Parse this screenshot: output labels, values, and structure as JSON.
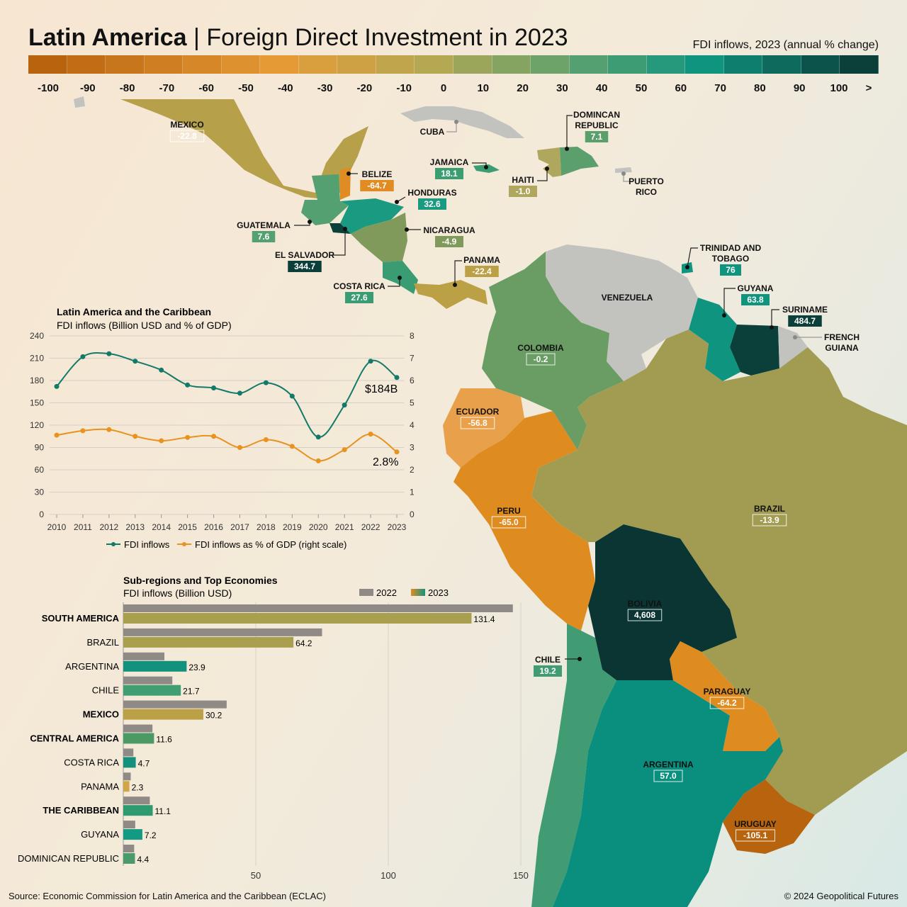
{
  "title": {
    "bold": "Latin America",
    "separator": "|",
    "rest": "Foreign Direct Investment in 2023"
  },
  "legend": {
    "title": "FDI inflows, 2023 (annual % change)",
    "ticks": [
      "-100",
      "-90",
      "-80",
      "-70",
      "-60",
      "-50",
      "-40",
      "-30",
      "-20",
      "-10",
      "0",
      "10",
      "20",
      "30",
      "40",
      "50",
      "60",
      "70",
      "80",
      "90",
      "100",
      ">"
    ],
    "colors": {
      "min": "#b8640e",
      "neg_mid": "#e59a35",
      "zero": "#b4a853",
      "pos_mid": "#55a070",
      "pos": "#0f9480",
      "max": "#0b3f39"
    }
  },
  "countries": [
    {
      "id": "mexico",
      "name": "MEXICO",
      "value": "-22.8"
    },
    {
      "id": "belize",
      "name": "BELIZE",
      "value": "-64.7"
    },
    {
      "id": "guatemala",
      "name": "GUATEMALA",
      "value": "7.6"
    },
    {
      "id": "el_salvador",
      "name": "EL SALVADOR",
      "value": "344.7"
    },
    {
      "id": "honduras",
      "name": "HONDURAS",
      "value": "32.6"
    },
    {
      "id": "nicaragua",
      "name": "NICARAGUA",
      "value": "-4.9"
    },
    {
      "id": "costa_rica",
      "name": "COSTA RICA",
      "value": "27.6"
    },
    {
      "id": "panama",
      "name": "PANAMA",
      "value": "-22.4"
    },
    {
      "id": "cuba",
      "name": "CUBA",
      "value": ""
    },
    {
      "id": "jamaica",
      "name": "JAMAICA",
      "value": "18.1"
    },
    {
      "id": "haiti",
      "name": "HAITI",
      "value": "-1.0"
    },
    {
      "id": "dominican",
      "name": "DOMINCAN REPUBLIC",
      "value": "7.1"
    },
    {
      "id": "puerto_rico",
      "name": "PUERTO RICO",
      "value": ""
    },
    {
      "id": "trinidad",
      "name": "TRINIDAD AND TOBAGO",
      "value": "76"
    },
    {
      "id": "venezuela",
      "name": "VENEZUELA",
      "value": ""
    },
    {
      "id": "guyana",
      "name": "GUYANA",
      "value": "63.8"
    },
    {
      "id": "suriname",
      "name": "SURINAME",
      "value": "484.7"
    },
    {
      "id": "french_guiana",
      "name": "FRENCH GUIANA",
      "value": ""
    },
    {
      "id": "colombia",
      "name": "COLOMBIA",
      "value": "-0.2"
    },
    {
      "id": "ecuador",
      "name": "ECUADOR",
      "value": "-56.8"
    },
    {
      "id": "peru",
      "name": "PERU",
      "value": "-65.0"
    },
    {
      "id": "brazil",
      "name": "BRAZIL",
      "value": "-13.9"
    },
    {
      "id": "bolivia",
      "name": "BOLIVIA",
      "value": "4,608"
    },
    {
      "id": "chile",
      "name": "CHILE",
      "value": "19.2"
    },
    {
      "id": "paraguay",
      "name": "PARAGUAY",
      "value": "-64.2"
    },
    {
      "id": "argentina",
      "name": "ARGENTINA",
      "value": "57.0"
    },
    {
      "id": "uruguay",
      "name": "URUGUAY",
      "value": "-105.1"
    }
  ],
  "chart_data": [
    {
      "type": "line",
      "title": "Latin America and the Caribbean",
      "subtitle": "FDI inflows (Billion USD and % of GDP)",
      "x": [
        2010,
        2011,
        2012,
        2013,
        2014,
        2015,
        2016,
        2017,
        2018,
        2019,
        2020,
        2021,
        2022,
        2023
      ],
      "ylim": [
        0,
        240
      ],
      "yticks": [
        0,
        30,
        60,
        90,
        120,
        150,
        180,
        210,
        240
      ],
      "y2lim": [
        0,
        8
      ],
      "y2ticks": [
        0,
        1,
        2,
        3,
        4,
        5,
        6,
        7,
        8
      ],
      "series": [
        {
          "name": "FDI inflows",
          "axis": "left",
          "color": "#137a6a",
          "values": [
            172,
            212,
            216,
            206,
            194,
            174,
            170,
            163,
            177,
            159,
            104,
            147,
            206,
            184
          ]
        },
        {
          "name": "FDI inflows as % of GDP (right scale)",
          "axis": "right",
          "color": "#e8921f",
          "values": [
            3.55,
            3.75,
            3.8,
            3.5,
            3.3,
            3.45,
            3.5,
            3.0,
            3.35,
            3.05,
            2.4,
            2.9,
            3.6,
            2.8
          ]
        }
      ],
      "annotations": [
        "$184B",
        "2.8%"
      ],
      "grid": true,
      "legend": "bottom"
    },
    {
      "type": "bar",
      "orientation": "horizontal",
      "title": "Sub-regions and Top Economies",
      "subtitle": "FDI inflows (Billion USD)",
      "categories": [
        "SOUTH AMERICA",
        "BRAZIL",
        "ARGENTINA",
        "CHILE",
        "MEXICO",
        "CENTRAL AMERICA",
        "COSTA RICA",
        "PANAMA",
        "THE CARIBBEAN",
        "GUYANA",
        "DOMINICAN REPUBLIC"
      ],
      "bold_categories": [
        "SOUTH AMERICA",
        "MEXICO",
        "CENTRAL AMERICA",
        "THE CARIBBEAN"
      ],
      "series": [
        {
          "name": "2022",
          "color": "#8f8a85",
          "values": [
            147,
            75,
            15.5,
            18.5,
            39,
            11,
            3.8,
            2.8,
            10,
            4.5,
            4.1
          ]
        },
        {
          "name": "2023",
          "values": [
            131.4,
            64.2,
            23.9,
            21.7,
            30.2,
            11.6,
            4.7,
            2.3,
            11.1,
            7.2,
            4.4
          ],
          "value_labels": [
            "131.4",
            "64.2",
            "23.9",
            "21.7",
            "30.2",
            "11.6",
            "4.7",
            "2.3",
            "11.1",
            "7.2",
            "4.4"
          ],
          "colors": [
            "#aa9e4f",
            "#aa9e4f",
            "#12917d",
            "#3f9e72",
            "#bba046",
            "#4b9a66",
            "#13917d",
            "#d3a546",
            "#2d9a70",
            "#129a82",
            "#4a9a6b"
          ]
        }
      ],
      "xlim": [
        0,
        150
      ],
      "xticks": [
        50,
        100,
        150
      ],
      "grid": true,
      "legend": "top-right"
    }
  ],
  "footer": {
    "source": "Source: Economic Commission for Latin America and the Caribbean (ECLAC)",
    "credit": "© 2024 Geopolitical Futures"
  }
}
